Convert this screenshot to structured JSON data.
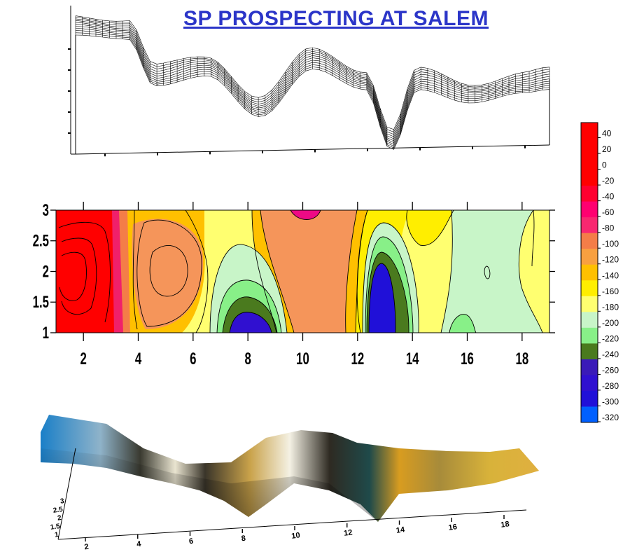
{
  "title": "SP PROSPECTING AT SALEM",
  "chart_data": [
    {
      "type": "surface-wireframe",
      "title": "",
      "x_range": [
        1,
        19
      ],
      "y_range": [
        1,
        3
      ],
      "profile": [
        [
          1,
          40
        ],
        [
          3,
          28
        ],
        [
          4,
          -110
        ],
        [
          6,
          -80
        ],
        [
          8,
          -200
        ],
        [
          10,
          -60
        ],
        [
          12,
          -120
        ],
        [
          13,
          -300
        ],
        [
          14,
          -120
        ],
        [
          16,
          -160
        ],
        [
          18,
          -130
        ],
        [
          19,
          -120
        ]
      ]
    },
    {
      "type": "contour",
      "title": "",
      "xlim": [
        1,
        19
      ],
      "ylim": [
        1,
        3
      ],
      "x_ticks": [
        "2",
        "4",
        "6",
        "8",
        "10",
        "12",
        "14",
        "16",
        "18"
      ],
      "y_ticks": [
        "1",
        "1.5",
        "2",
        "2.5",
        "3"
      ],
      "colorbar": {
        "levels": [
          "40",
          "20",
          "0",
          "-20",
          "-40",
          "-60",
          "-80",
          "-100",
          "-120",
          "-140",
          "-160",
          "-180",
          "-200",
          "-220",
          "-240",
          "-260",
          "-280",
          "-300",
          "-320"
        ],
        "colors": [
          "#ff0000",
          "#ff0000",
          "#ff0000",
          "#ff0000",
          "#ff0030",
          "#ff0070",
          "#f82870",
          "#f47d48",
          "#f8a040",
          "#ffc000",
          "#ffee00",
          "#ffff70",
          "#c8f5c8",
          "#88f088",
          "#4a7a1e",
          "#3a1ab8",
          "#3010d0",
          "#2010d8",
          "#0060ff"
        ]
      },
      "features": [
        {
          "label": "high",
          "x": 2,
          "y": 2,
          "value": 40
        },
        {
          "label": "low",
          "x": 5.2,
          "y": 2.05,
          "value": -110
        },
        {
          "label": "low",
          "x": 8.4,
          "y": 1.05,
          "value": -270
        },
        {
          "label": "low",
          "x": 10.3,
          "y": 2.95,
          "value": -70
        },
        {
          "label": "low",
          "x": 13.1,
          "y": 1.5,
          "value": -280
        },
        {
          "label": "low",
          "x": 17,
          "y": 1.9,
          "value": -190
        }
      ]
    },
    {
      "type": "surface-shaded",
      "title": "",
      "x_ticks": [
        "2",
        "4",
        "6",
        "8",
        "10",
        "12",
        "14",
        "16",
        "18"
      ],
      "y_ticks": [
        "1",
        "1.5",
        "2",
        "2.5",
        "3"
      ]
    }
  ]
}
